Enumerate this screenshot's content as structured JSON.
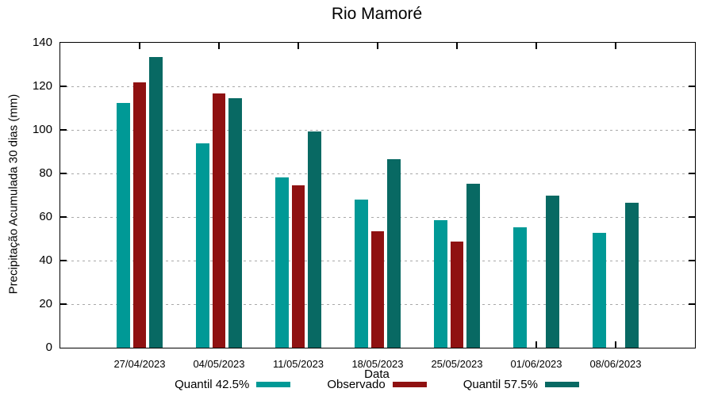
{
  "chart_data": {
    "type": "bar",
    "title": "Rio Mamoré",
    "xlabel": "Data",
    "ylabel": "Precipitação Acumulada 30 dias (mm)",
    "ylim": [
      0,
      140
    ],
    "yticks": [
      0,
      20,
      40,
      60,
      80,
      100,
      120,
      140
    ],
    "grid": "horizontal dashed gridlines at each y tick",
    "legend_position": "bottom-center",
    "categories": [
      "27/04/2023",
      "04/05/2023",
      "11/05/2023",
      "18/05/2023",
      "25/05/2023",
      "01/06/2023",
      "08/06/2023"
    ],
    "series": [
      {
        "name": "Quantil 42.5%",
        "color": "#009996",
        "values": [
          112.2,
          93.8,
          78.2,
          68.0,
          58.5,
          55.2,
          52.6
        ]
      },
      {
        "name": "Observado",
        "color": "#8F1111",
        "values": [
          122.0,
          116.9,
          74.5,
          53.4,
          48.6,
          null,
          null
        ]
      },
      {
        "name": "Quantil 57.5%",
        "color": "#086963",
        "values": [
          133.4,
          114.6,
          99.3,
          86.5,
          75.2,
          69.9,
          66.4
        ]
      }
    ]
  },
  "colors": {
    "background": "#ffffff",
    "plot_border": "#000000",
    "grid": "#a9a9a9",
    "text": "#000000"
  }
}
